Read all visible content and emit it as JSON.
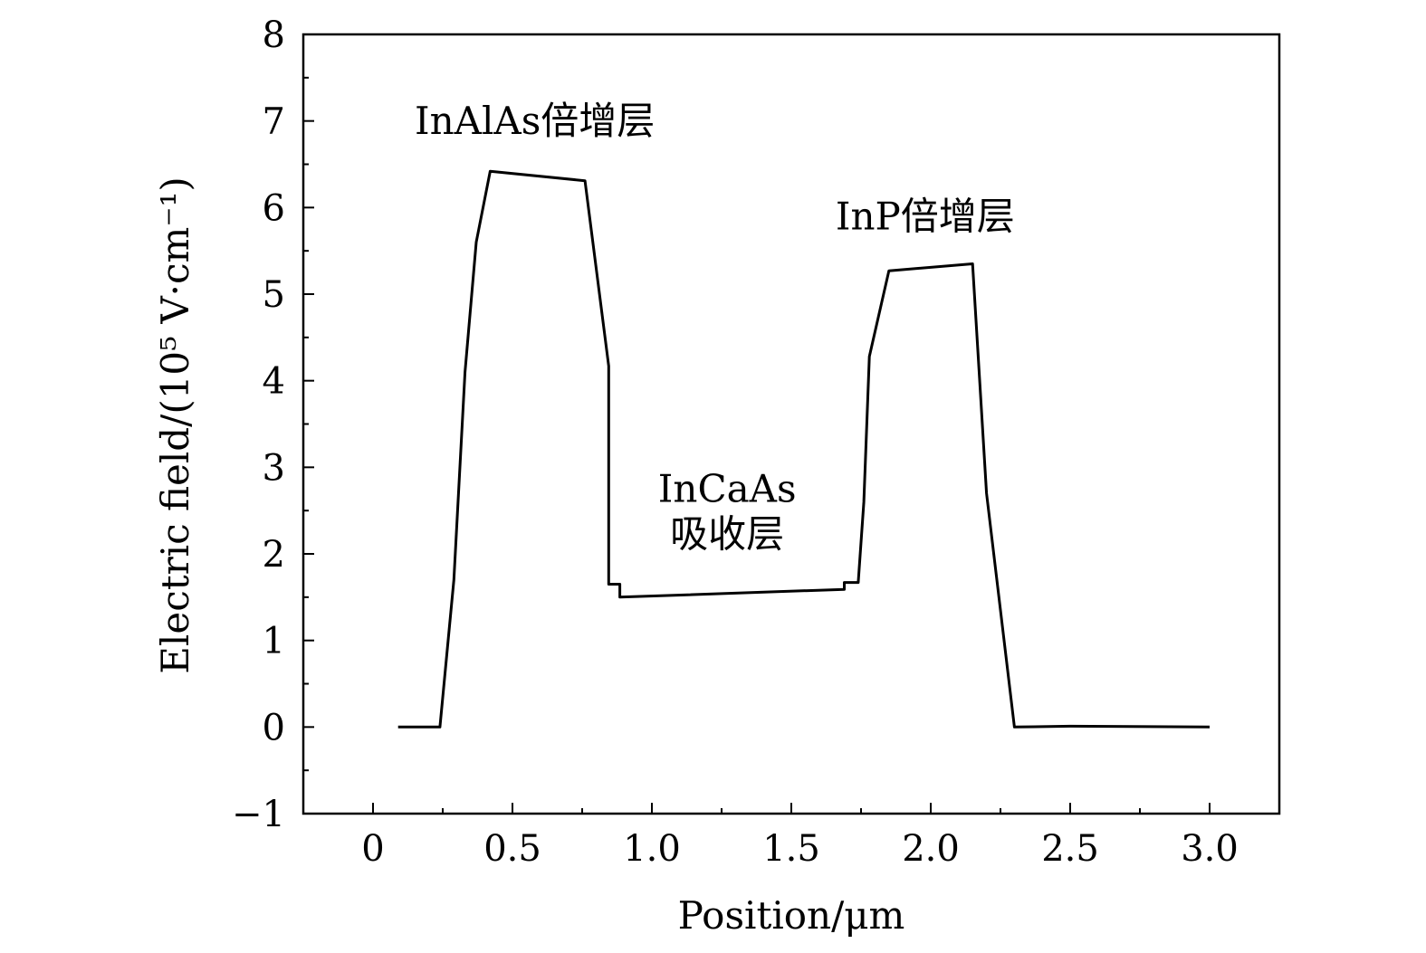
{
  "chart_data": {
    "type": "line",
    "title": "",
    "xlabel": "Position/μm",
    "ylabel": "Electric field/(10⁵ V·cm⁻¹)",
    "xlim": [
      -0.25,
      3.25
    ],
    "ylim": [
      -1,
      8
    ],
    "x_ticks": [
      0,
      0.5,
      1.0,
      1.5,
      2.0,
      2.5,
      3.0
    ],
    "x_tick_labels": [
      "0",
      "0.5",
      "1.0",
      "1.5",
      "2.0",
      "2.5",
      "3.0"
    ],
    "y_ticks": [
      -1,
      0,
      1,
      2,
      3,
      4,
      5,
      6,
      7,
      8
    ],
    "y_tick_labels": [
      "−1",
      "0",
      "1",
      "2",
      "3",
      "4",
      "5",
      "6",
      "7",
      "8"
    ],
    "grid": false,
    "legend": "none",
    "line_color": "#000000",
    "series": [
      {
        "x": [
          0.09,
          0.24,
          0.29,
          0.33,
          0.37,
          0.42,
          0.76,
          0.845,
          0.845,
          0.885,
          0.885,
          1.69,
          1.69,
          1.74,
          1.76,
          1.78,
          1.85,
          2.15,
          2.2,
          2.3,
          2.5,
          3.0
        ],
        "y": [
          0.0,
          0.0,
          1.7,
          4.1,
          5.6,
          6.42,
          6.31,
          4.17,
          1.65,
          1.65,
          1.5,
          1.59,
          1.67,
          1.67,
          2.6,
          4.28,
          5.27,
          5.35,
          2.7,
          0.0,
          0.01,
          0.0
        ]
      }
    ],
    "annotations": [
      {
        "text": "InAlAs倍增层",
        "x": 0.58,
        "y": 6.85
      },
      {
        "text": "InP倍增层",
        "x": 1.98,
        "y": 5.75
      },
      {
        "text": "InCaAs",
        "x": 1.27,
        "y": 2.6
      },
      {
        "text": "吸收层",
        "x": 1.27,
        "y": 2.08
      }
    ]
  }
}
